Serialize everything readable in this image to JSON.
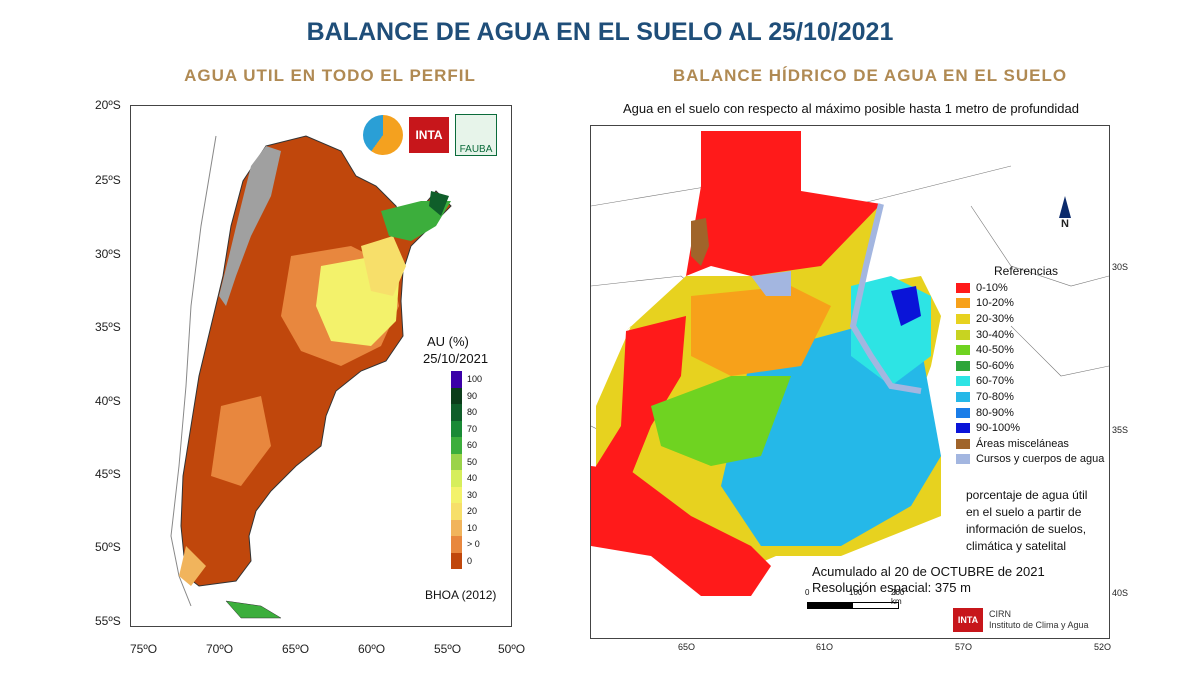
{
  "title": "BALANCE DE AGUA EN EL SUELO AL 25/10/2021",
  "left": {
    "subtitle": "AGUA UTIL EN TODO EL PERFIL",
    "legend_title": "AU (%)",
    "legend_date": "25/10/2021",
    "legend": [
      {
        "label": "100",
        "color": "#3b00a8"
      },
      {
        "label": "90",
        "color": "#0b3d1a"
      },
      {
        "label": "80",
        "color": "#0f5e2a"
      },
      {
        "label": "70",
        "color": "#1a8a36"
      },
      {
        "label": "60",
        "color": "#3cae3c"
      },
      {
        "label": "50",
        "color": "#9bd34a"
      },
      {
        "label": "40",
        "color": "#d6ee5c"
      },
      {
        "label": "30",
        "color": "#f3f26b"
      },
      {
        "label": "20",
        "color": "#f7df6a"
      },
      {
        "label": "10",
        "color": "#f1b45c"
      },
      {
        "label": "> 0",
        "color": "#e8873e"
      },
      {
        "label": "0",
        "color": "#c0470c"
      }
    ],
    "source": "BHOA (2012)",
    "logos": {
      "inta": "INTA",
      "fauba": "FAUBA"
    },
    "lat_labels": [
      "20ºS",
      "25ºS",
      "30ºS",
      "35ºS",
      "40ºS",
      "45ºS",
      "50ºS",
      "55ºS"
    ],
    "lon_labels": [
      "75ºO",
      "70ºO",
      "65ºO",
      "60ºO",
      "55ºO",
      "50ºO"
    ]
  },
  "right": {
    "subtitle": "BALANCE HÍDRICO DE AGUA EN EL SUELO",
    "caption": "Agua en el suelo con respecto al máximo posible hasta 1 metro de profundidad",
    "north": "N",
    "legend_title": "Referencias",
    "legend": [
      {
        "label": "0-10%",
        "color": "#ff1a1a"
      },
      {
        "label": "10-20%",
        "color": "#f7a11a"
      },
      {
        "label": "20-30%",
        "color": "#e7d21f"
      },
      {
        "label": "30-40%",
        "color": "#c8d321"
      },
      {
        "label": "40-50%",
        "color": "#6fd321"
      },
      {
        "label": "50-60%",
        "color": "#2ea53a"
      },
      {
        "label": "60-70%",
        "color": "#2de4e4"
      },
      {
        "label": "70-80%",
        "color": "#25b8e8"
      },
      {
        "label": "80-90%",
        "color": "#1a7de8"
      },
      {
        "label": "90-100%",
        "color": "#0a14d8"
      },
      {
        "label": "Áreas misceláneas",
        "color": "#a0642a"
      },
      {
        "label": "Cursos y cuerpos de agua",
        "color": "#a3b6e0"
      }
    ],
    "note": [
      "porcentaje de agua útil",
      "en el suelo a partir de",
      "información de suelos,",
      "climática y satelital"
    ],
    "accumulated": "Acumulado al 20 de OCTUBRE de 2021",
    "resolution": "Resolución espacial: 375 m",
    "scale_labels": [
      "0",
      "100",
      "200 km"
    ],
    "logos": {
      "inta": "INTA",
      "cirn": "CIRN",
      "institute": "Instituto de Clima y Agua"
    },
    "lat_labels": [
      "30S",
      "35S",
      "40S"
    ],
    "lon_labels": [
      "65O",
      "61O",
      "57O",
      "52O"
    ]
  }
}
